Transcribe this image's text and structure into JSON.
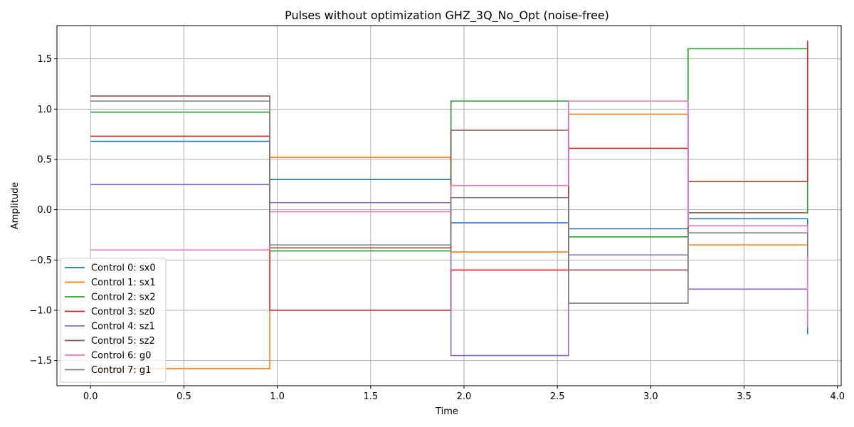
{
  "chart_data": {
    "type": "line",
    "step": "post",
    "title": "Pulses without optimization GHZ_3Q_No_Opt (noise-free)",
    "xlabel": "Time",
    "ylabel": "Amplitude",
    "xlim": [
      -0.18,
      4.02
    ],
    "ylim": [
      -1.75,
      1.83
    ],
    "x_ticks": [
      0.0,
      0.5,
      1.0,
      1.5,
      2.0,
      2.5,
      3.0,
      3.5,
      4.0
    ],
    "x_tick_labels": [
      "0.0",
      "0.5",
      "1.0",
      "1.5",
      "2.0",
      "2.5",
      "3.0",
      "3.5",
      "4.0"
    ],
    "y_ticks": [
      -1.5,
      -1.0,
      -0.5,
      0.0,
      0.5,
      1.0,
      1.5
    ],
    "y_tick_labels": [
      "−1.5",
      "−1.0",
      "−0.5",
      "0.0",
      "0.5",
      "1.0",
      "1.5"
    ],
    "grid": true,
    "legend_position": "lower-left",
    "x": [
      0.0,
      0.96,
      1.93,
      2.56,
      3.2,
      3.84
    ],
    "series": [
      {
        "name": "Control 0: sx0",
        "color": "#1f77b4",
        "values": [
          0.68,
          0.3,
          -0.13,
          -0.19,
          -0.09,
          -1.24
        ]
      },
      {
        "name": "Control 1: sx1",
        "color": "#ff7f0e",
        "values": [
          -1.58,
          0.52,
          -0.42,
          0.95,
          -0.35,
          -0.35
        ]
      },
      {
        "name": "Control 2: sx2",
        "color": "#2ca02c",
        "values": [
          0.97,
          -0.41,
          1.08,
          -0.27,
          1.6,
          -0.04
        ]
      },
      {
        "name": "Control 3: sz0",
        "color": "#d62728",
        "values": [
          0.73,
          -1.0,
          -0.6,
          0.61,
          0.28,
          1.68
        ]
      },
      {
        "name": "Control 4: sz1",
        "color": "#9467bd",
        "values": [
          0.25,
          0.07,
          -1.45,
          -0.45,
          -0.79,
          -0.79
        ]
      },
      {
        "name": "Control 5: sz2",
        "color": "#8c564b",
        "values": [
          1.13,
          -0.38,
          0.79,
          -0.6,
          -0.03,
          -0.03
        ]
      },
      {
        "name": "Control 6: g0",
        "color": "#e377c2",
        "values": [
          -0.4,
          -0.02,
          0.24,
          1.08,
          -0.16,
          -1.17
        ]
      },
      {
        "name": "Control 7: g1",
        "color": "#7f7f7f",
        "values": [
          1.08,
          -0.35,
          0.12,
          -0.93,
          -0.23,
          -0.47
        ]
      }
    ]
  }
}
